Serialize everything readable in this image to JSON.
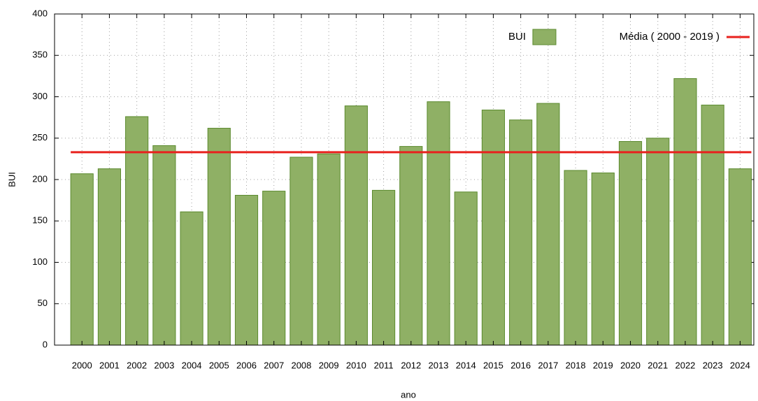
{
  "chart_data": {
    "type": "bar",
    "x_label": "ano",
    "y_label": "BUI",
    "categories": [
      "2000",
      "2001",
      "2002",
      "2003",
      "2004",
      "2005",
      "2006",
      "2007",
      "2008",
      "2009",
      "2010",
      "2011",
      "2012",
      "2013",
      "2014",
      "2015",
      "2016",
      "2017",
      "2018",
      "2019",
      "2020",
      "2021",
      "2022",
      "2023",
      "2024"
    ],
    "series": [
      {
        "name": "BUI",
        "color": "#8fb065",
        "values": [
          207,
          213,
          276,
          241,
          161,
          262,
          181,
          186,
          227,
          231,
          289,
          187,
          240,
          294,
          185,
          284,
          272,
          292,
          211,
          208,
          246,
          250,
          322,
          290,
          213
        ]
      }
    ],
    "reference_line": {
      "name": "Média ( 2000 - 2019 )",
      "color": "#e8211d",
      "value": 233
    },
    "ylim": [
      0,
      400
    ],
    "yticks": [
      0,
      50,
      100,
      150,
      200,
      250,
      300,
      350,
      400
    ],
    "grid": true,
    "legend": "top-right"
  }
}
